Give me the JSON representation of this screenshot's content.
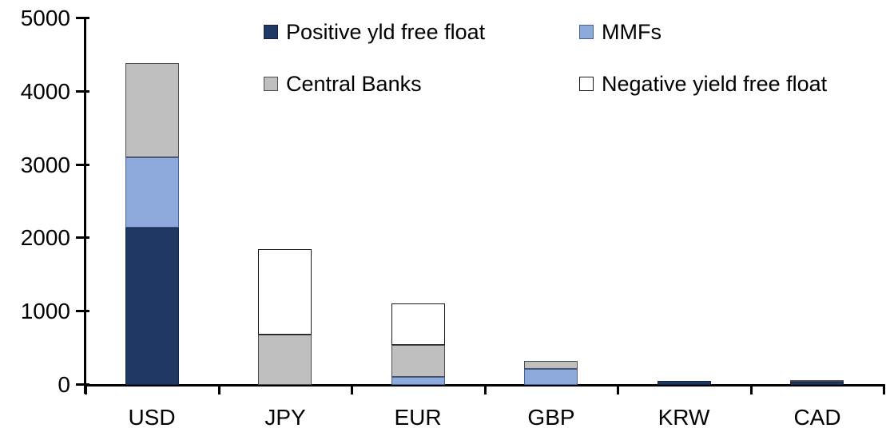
{
  "chart_data": {
    "type": "bar",
    "stacked": true,
    "title": "",
    "xlabel": "",
    "ylabel": "",
    "categories": [
      "USD",
      "JPY",
      "EUR",
      "GBP",
      "KRW",
      "CAD"
    ],
    "series": [
      {
        "name": "Positive yld free float",
        "color": "#1F3864",
        "border_color": "#14243F",
        "values": [
          2150,
          0,
          0,
          0,
          50,
          45
        ]
      },
      {
        "name": "MMFs",
        "color": "#8EA9DB",
        "border_color": "#46618F",
        "values": [
          950,
          0,
          110,
          220,
          0,
          0
        ]
      },
      {
        "name": "Central Banks",
        "color": "#BFBFBF",
        "border_color": "#4D4D4D",
        "values": [
          1290,
          690,
          430,
          110,
          0,
          20
        ]
      },
      {
        "name": "Negative yield free float",
        "color": "#FFFFFF",
        "border_color": "#1A1A1A",
        "values": [
          0,
          1160,
          570,
          0,
          0,
          0
        ]
      }
    ],
    "totals_by_category": [
      4390,
      1850,
      1110,
      330,
      50,
      65
    ],
    "ylim": [
      0,
      5000
    ],
    "yticks": [
      0,
      1000,
      2000,
      3000,
      4000,
      5000
    ],
    "ytick_labels": [
      "0",
      "1000",
      "2000",
      "3000",
      "4000",
      "5000"
    ],
    "grid": false,
    "legend_position": "top",
    "legend_columns": 2,
    "axis_color": "#000000",
    "text_color": "#000000",
    "background_color": "#FFFFFF"
  }
}
